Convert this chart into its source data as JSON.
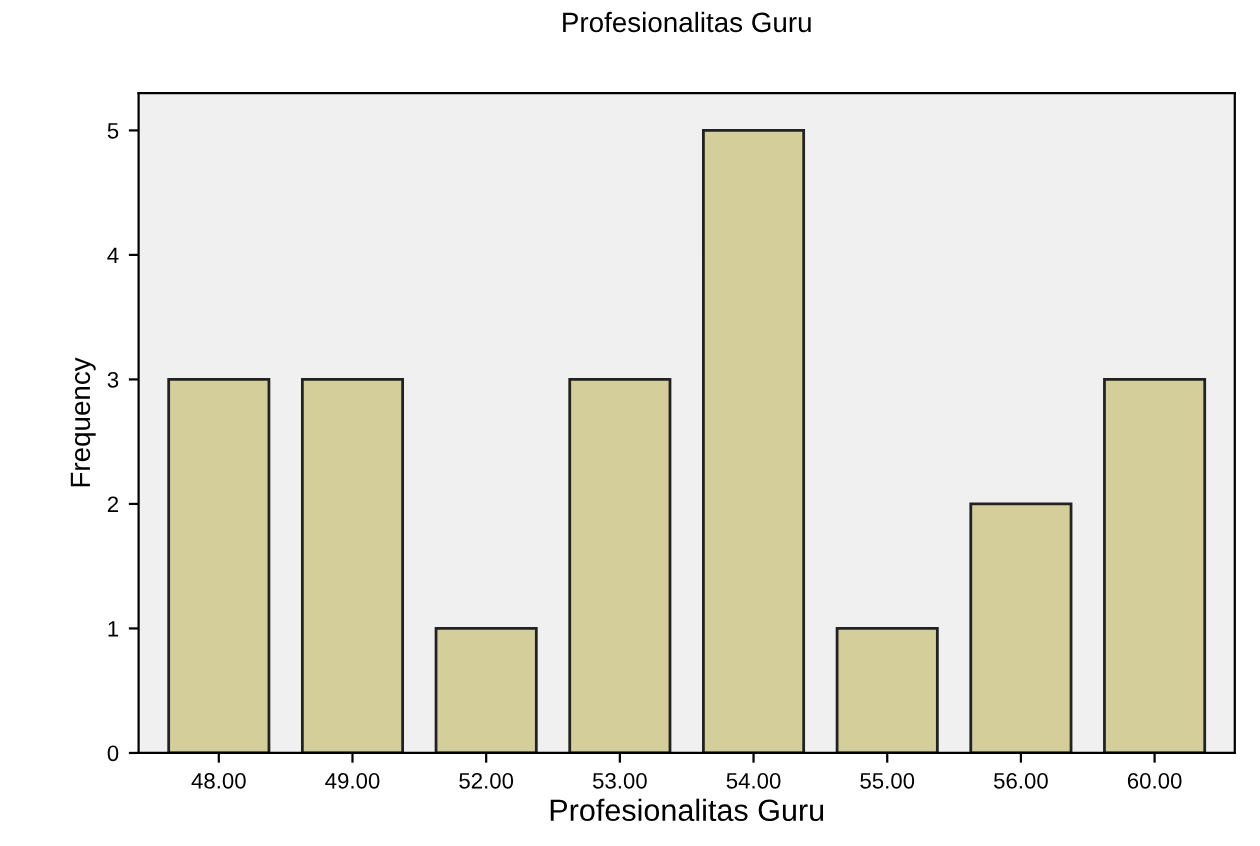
{
  "chart_data": {
    "type": "bar",
    "title": "Profesionalitas Guru",
    "xlabel": "Profesionalitas Guru",
    "ylabel": "Frequency",
    "categories": [
      "48.00",
      "49.00",
      "52.00",
      "53.00",
      "54.00",
      "55.00",
      "56.00",
      "60.00"
    ],
    "values": [
      3,
      3,
      1,
      3,
      5,
      1,
      2,
      3
    ],
    "color": "#d4cf9a",
    "ylim": [
      0,
      5.3
    ],
    "yticks": [
      0,
      1,
      2,
      3,
      4,
      5
    ],
    "grid": false,
    "legend": false
  }
}
